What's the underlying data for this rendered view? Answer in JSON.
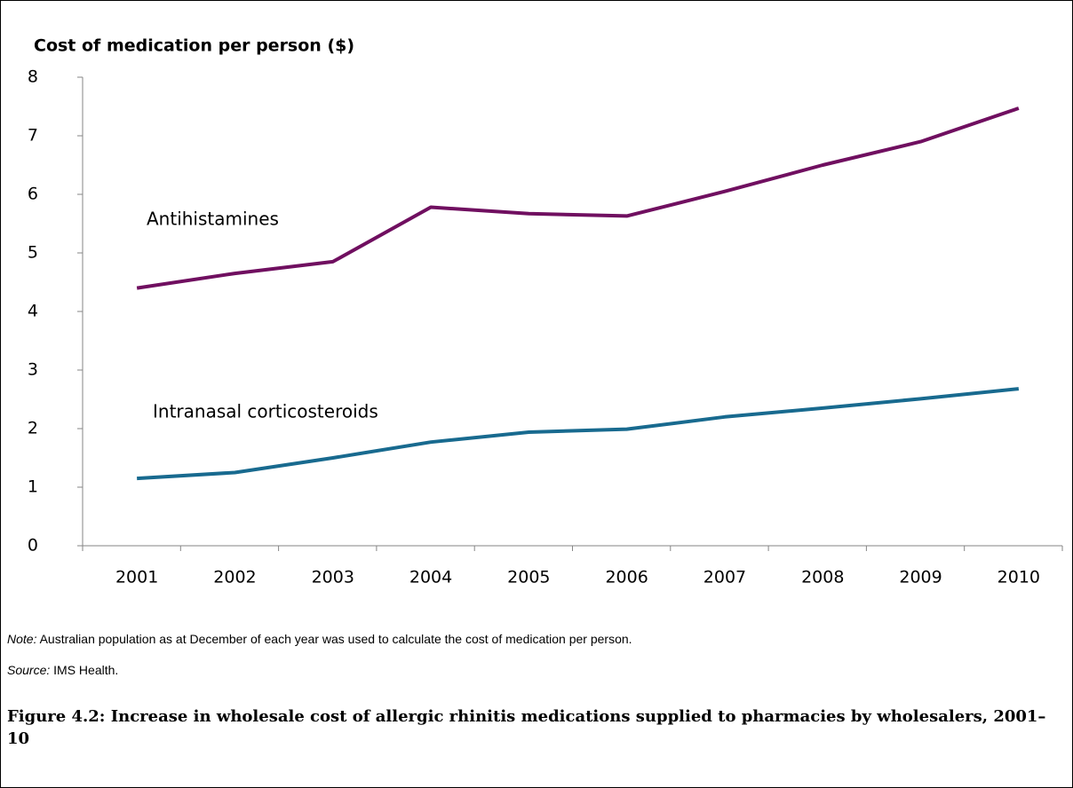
{
  "chart_data": {
    "type": "line",
    "y_axis_title": "Cost of medication per person ($)",
    "categories": [
      "2001",
      "2002",
      "2003",
      "2004",
      "2005",
      "2006",
      "2007",
      "2008",
      "2009",
      "2010"
    ],
    "series": [
      {
        "name": "Antihistamines",
        "color": "#700f60",
        "values": [
          4.4,
          4.65,
          4.85,
          5.78,
          5.67,
          5.63,
          6.05,
          6.5,
          6.9,
          7.47
        ]
      },
      {
        "name": "Intranasal corticosteroids",
        "color": "#186a8f",
        "values": [
          1.15,
          1.25,
          1.5,
          1.77,
          1.94,
          1.99,
          2.2,
          2.35,
          2.51,
          2.68
        ]
      }
    ],
    "ylim": [
      0,
      8
    ],
    "yticks": [
      0,
      1,
      2,
      3,
      4,
      5,
      6,
      7,
      8
    ],
    "grid": false,
    "note_label": "Note:",
    "note": "Australian population as at December of each year was used to calculate the cost of medication per person.",
    "source_label": "Source:",
    "source": "IMS Health.",
    "caption": "Figure 4.2: Increase in wholesale cost of allergic rhinitis medications supplied to pharmacies by wholesalers, 2001–10"
  }
}
